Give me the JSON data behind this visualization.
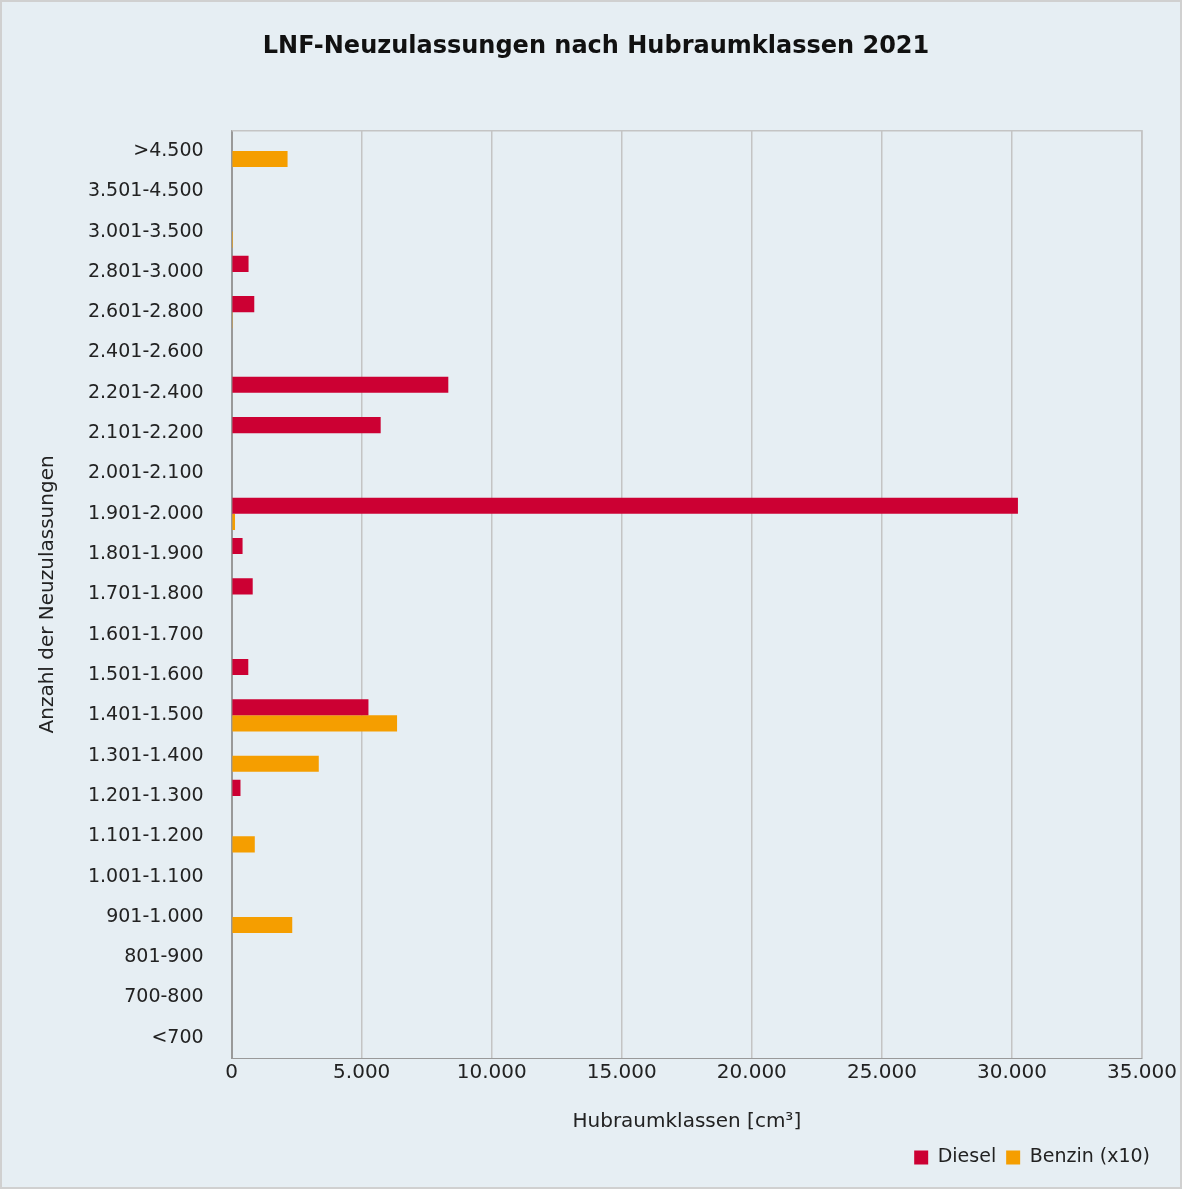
{
  "chart_data": {
    "type": "bar",
    "orientation": "horizontal",
    "title": "LNF-Neuzulassungen nach Hubraumklassen 2021",
    "xlabel": "Hubraumklassen [cm³]",
    "ylabel": "Anzahl der Neuzulassungen",
    "categories": [
      ">4.500",
      "3.501-4.500",
      "3.001-3.500",
      "2.801-3.000",
      "2.601-2.800",
      "2.401-2.600",
      "2.201-2.400",
      "2.101-2.200",
      "2.001-2.100",
      "1.901-2.000",
      "1.801-1.900",
      "1.701-1.800",
      "1.601-1.700",
      "1.501-1.600",
      "1.401-1.500",
      "1.301-1.400",
      "1.201-1.300",
      "1.101-1.200",
      "1.001-1.100",
      "901-1.000",
      "801-900",
      "700-800",
      "<700"
    ],
    "series": [
      {
        "name": "Diesel",
        "color": "#cc0033",
        "values": [
          null,
          null,
          null,
          650,
          870,
          null,
          8330,
          5730,
          null,
          30230,
          420,
          810,
          null,
          640,
          5260,
          null,
          340,
          null,
          null,
          null,
          null,
          null,
          null
        ]
      },
      {
        "name": "Benzin (x10)",
        "color": "#f59e00",
        "values": [
          2150,
          null,
          50,
          null,
          40,
          null,
          null,
          null,
          null,
          130,
          null,
          null,
          null,
          null,
          6360,
          3350,
          null,
          890,
          null,
          2330,
          null,
          null,
          null
        ]
      }
    ],
    "xlim": [
      0,
      35000
    ],
    "xticks": [
      0,
      {
        "value": 5000,
        "label": "5.000"
      },
      {
        "value": 10000,
        "label": "10.000"
      },
      {
        "value": 15000,
        "label": "15.000"
      },
      {
        "value": 20000,
        "label": "20.000"
      },
      {
        "value": 25000,
        "label": "25.000"
      },
      {
        "value": 30000,
        "label": "30.000"
      },
      {
        "value": 35000,
        "label": "35.000"
      }
    ],
    "grid": "x",
    "legend": "bottom right"
  }
}
